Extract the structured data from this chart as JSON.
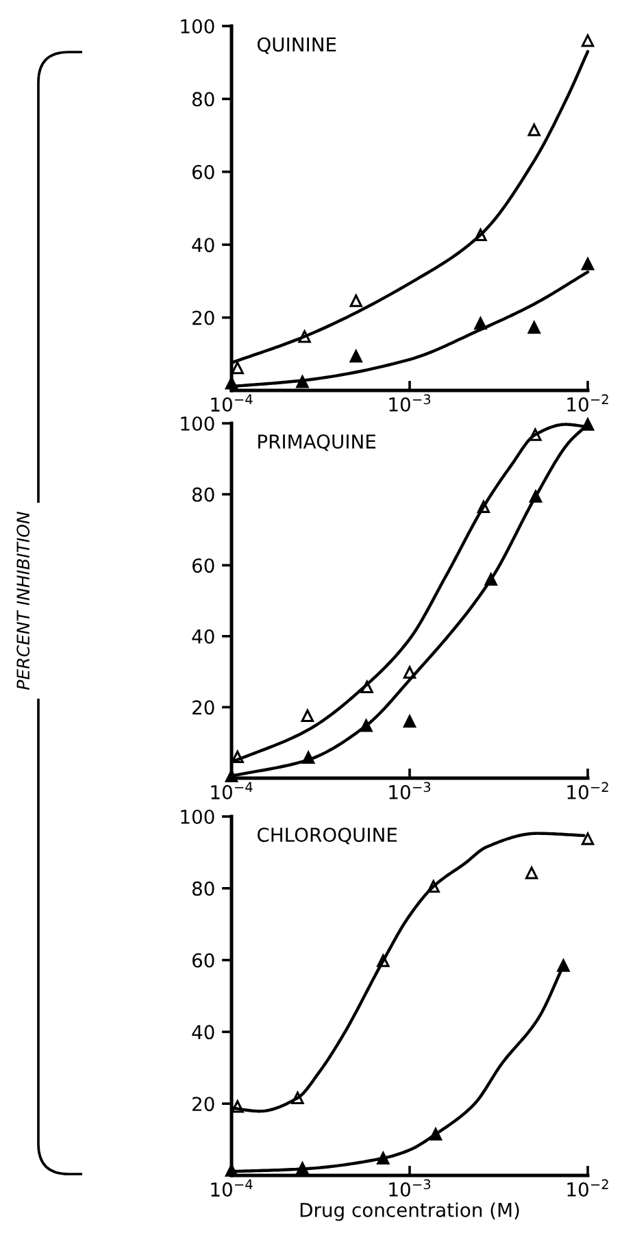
{
  "chart_data": [
    {
      "type": "scatter",
      "title": "QUININE",
      "xlim": [
        0.0001,
        0.01
      ],
      "ylim": [
        0,
        100
      ],
      "log": "x",
      "marker": "triangle",
      "xticks": [
        {
          "value": 0.0001,
          "label": "10$^{−4}$"
        },
        {
          "value": 0.001,
          "label": "10$^{−3}$"
        },
        {
          "value": 0.01,
          "label": "10$^{−2}$"
        }
      ],
      "yticks": [
        20,
        40,
        60,
        80,
        100
      ],
      "series": [
        {
          "color": "#ffffff",
          "x": [
            0.000108,
            0.000257,
            0.0005,
            0.0025,
            0.005,
            0.01
          ],
          "values": [
            6.2,
            14.8,
            24.6,
            42.7,
            71.5,
            96
          ]
        },
        {
          "color": "#000000",
          "x": [
            0.0001,
            0.00025,
            0.0005,
            0.0025,
            0.005,
            0.01
          ],
          "values": [
            2,
            2.4,
            9.4,
            18.4,
            17.3,
            34.7
          ]
        },
        {
          "type": "line",
          "color": "#000000",
          "marker": "none",
          "x": [
            0.0001,
            0.000257,
            0.001,
            0.0025,
            0.005,
            0.0077,
            0.01
          ],
          "values": [
            7.6,
            14.8,
            29.4,
            42.7,
            63,
            80.6,
            93
          ]
        },
        {
          "type": "line",
          "color": "#000000",
          "marker": "none",
          "x": [
            0.0001,
            0.000257,
            0.001,
            0.0025,
            0.005,
            0.01
          ],
          "values": [
            1.1,
            2.8,
            8.5,
            16.7,
            23.7,
            32.5
          ]
        }
      ]
    },
    {
      "type": "scatter",
      "title": "PRIMAQUINE",
      "ylabel": "PERCENT INHIBITION",
      "xlim": [
        0.0001,
        0.01
      ],
      "ylim": [
        0,
        100
      ],
      "log": "x",
      "marker": "triangle",
      "xticks": [
        {
          "value": 0.0001,
          "label": "10$^{−4}$"
        },
        {
          "value": 0.001,
          "label": "10$^{−3}$"
        },
        {
          "value": 0.01,
          "label": "10$^{−2}$"
        }
      ],
      "yticks": [
        20,
        40,
        60,
        80,
        100
      ],
      "series": [
        {
          "color": "#ffffff",
          "x": [
            0.000108,
            0.000267,
            0.000576,
            0.001,
            0.0026,
            0.00507
          ],
          "values": [
            6,
            17.6,
            25.7,
            29.8,
            76.5,
            96.8
          ]
        },
        {
          "color": "#000000",
          "x": [
            0.0001,
            0.00027,
            0.00057,
            0.001,
            0.00286,
            0.0051,
            0.01
          ],
          "values": [
            0.6,
            5.8,
            14.8,
            16,
            56,
            79.4,
            99.7
          ]
        },
        {
          "type": "line",
          "color": "#000000",
          "marker": "none",
          "x": [
            0.0001,
            0.000267,
            0.000576,
            0.001,
            0.0016,
            0.0026,
            0.0037,
            0.00507,
            0.0075,
            0.01
          ],
          "values": [
            4.5,
            13.5,
            26.4,
            39.2,
            57,
            76.5,
            88,
            96.8,
            99.7,
            99
          ]
        },
        {
          "type": "line",
          "color": "#000000",
          "marker": "none",
          "x": [
            0.0001,
            0.000267,
            0.00057,
            0.001,
            0.00286,
            0.0051,
            0.0078,
            0.01
          ],
          "values": [
            0.6,
            5.1,
            14.8,
            27.7,
            56,
            79.4,
            94.5,
            99.7
          ]
        }
      ]
    },
    {
      "type": "scatter",
      "title": "CHLOROQUINE",
      "xlabel": "Drug concentration (M)",
      "xlim": [
        0.0001,
        0.01
      ],
      "ylim": [
        0,
        100
      ],
      "log": "x",
      "marker": "triangle",
      "xticks": [
        {
          "value": 0.0001,
          "label": "10$^{−4}$"
        },
        {
          "value": 0.001,
          "label": "10$^{−3}$"
        },
        {
          "value": 0.01,
          "label": "10$^{−2}$"
        }
      ],
      "yticks": [
        20,
        40,
        60,
        80,
        100
      ],
      "series": [
        {
          "color": "#ffffff",
          "x": [
            0.000108,
            0.000235,
            0.00071,
            0.00136,
            0.00484,
            0.01
          ],
          "values": [
            19.2,
            21.6,
            59.8,
            80.5,
            84.3,
            93.8
          ]
        },
        {
          "color": "#000000",
          "x": [
            0.0001,
            0.00025,
            0.00071,
            0.0014,
            0.0073
          ],
          "values": [
            1.4,
            2,
            4.8,
            11.5,
            58.5
          ]
        },
        {
          "type": "line",
          "color": "#000000",
          "marker": "none",
          "x": [
            0.0001,
            0.000144,
            0.000235,
            0.00031,
            0.00042,
            0.00071,
            0.00098,
            0.00136,
            0.00205,
            0.0027,
            0.0052,
            0.0095
          ],
          "values": [
            18.8,
            17.9,
            21.6,
            28.7,
            38.8,
            59.8,
            71.8,
            80.5,
            87,
            91.5,
            95.3,
            94.7
          ]
        },
        {
          "type": "line",
          "color": "#000000",
          "marker": "none",
          "x": [
            0.0001,
            0.00025,
            0.00071,
            0.001,
            0.0014,
            0.0023,
            0.0033,
            0.0053,
            0.0073
          ],
          "values": [
            1.1,
            1.8,
            4.8,
            7.1,
            11.5,
            19.8,
            31.2,
            43.9,
            58.5
          ]
        }
      ]
    }
  ]
}
